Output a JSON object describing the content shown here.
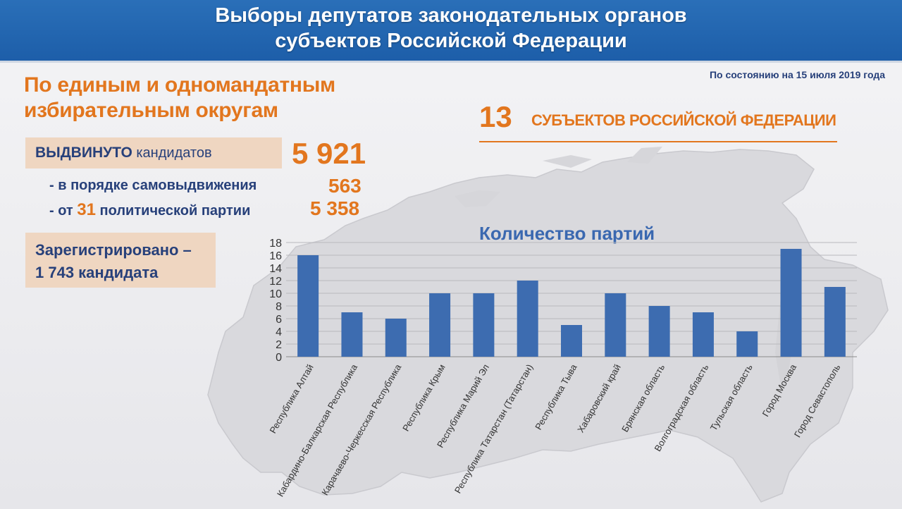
{
  "header": {
    "line1": "Выборы депутатов законодательных органов",
    "line2": "субъектов Российской Федерации"
  },
  "date_note": "По состоянию на 15 июля 2019 года",
  "left": {
    "subtitle_line1": "По единым и одномандатным",
    "subtitle_line2": "избирательным округам",
    "nominated_label_bold": "ВЫДВИНУТО",
    "nominated_label_rest": " кандидатов",
    "nominated_value": "5 921",
    "self_label": "- в порядке самовыдвижения",
    "self_value": "563",
    "party_label_prefix": "- от ",
    "party_label_number": "31",
    "party_label_suffix": " политической партии",
    "party_value": "5 358",
    "registered_line1": "Зарегистрировано –",
    "registered_line2": "1 743 кандидата"
  },
  "right": {
    "count": "13",
    "count_label": "СУБЪЕКТОВ РОССИЙСКОЙ ФЕДЕРАЦИИ"
  },
  "colors": {
    "header": "#1d5ea9",
    "orange": "#e2761e",
    "dark_blue": "#27407a",
    "bar": "#3d6cb0",
    "box": "#efd6c1"
  },
  "chart_data": {
    "type": "bar",
    "title": "Количество партий",
    "categories": [
      "Республика Алтай",
      "Кабардино-Балкарская Республика",
      "Карачаево-Черкесская Республика",
      "Республика Крым",
      "Республика Марий Эл",
      "Республика Татарстан (Татарстан)",
      "Республика Тыва",
      "Хабаровский край",
      "Брянская область",
      "Волгоградская область",
      "Тульская область",
      "Город Москва",
      "Город Севастополь"
    ],
    "values": [
      16,
      7,
      6,
      10,
      10,
      12,
      5,
      10,
      8,
      7,
      4,
      17,
      11
    ],
    "ylim": [
      0,
      18
    ],
    "yticks": [
      "0",
      "2",
      "4",
      "6",
      "8",
      "10",
      "12",
      "14",
      "16",
      "18"
    ],
    "grid": true
  }
}
